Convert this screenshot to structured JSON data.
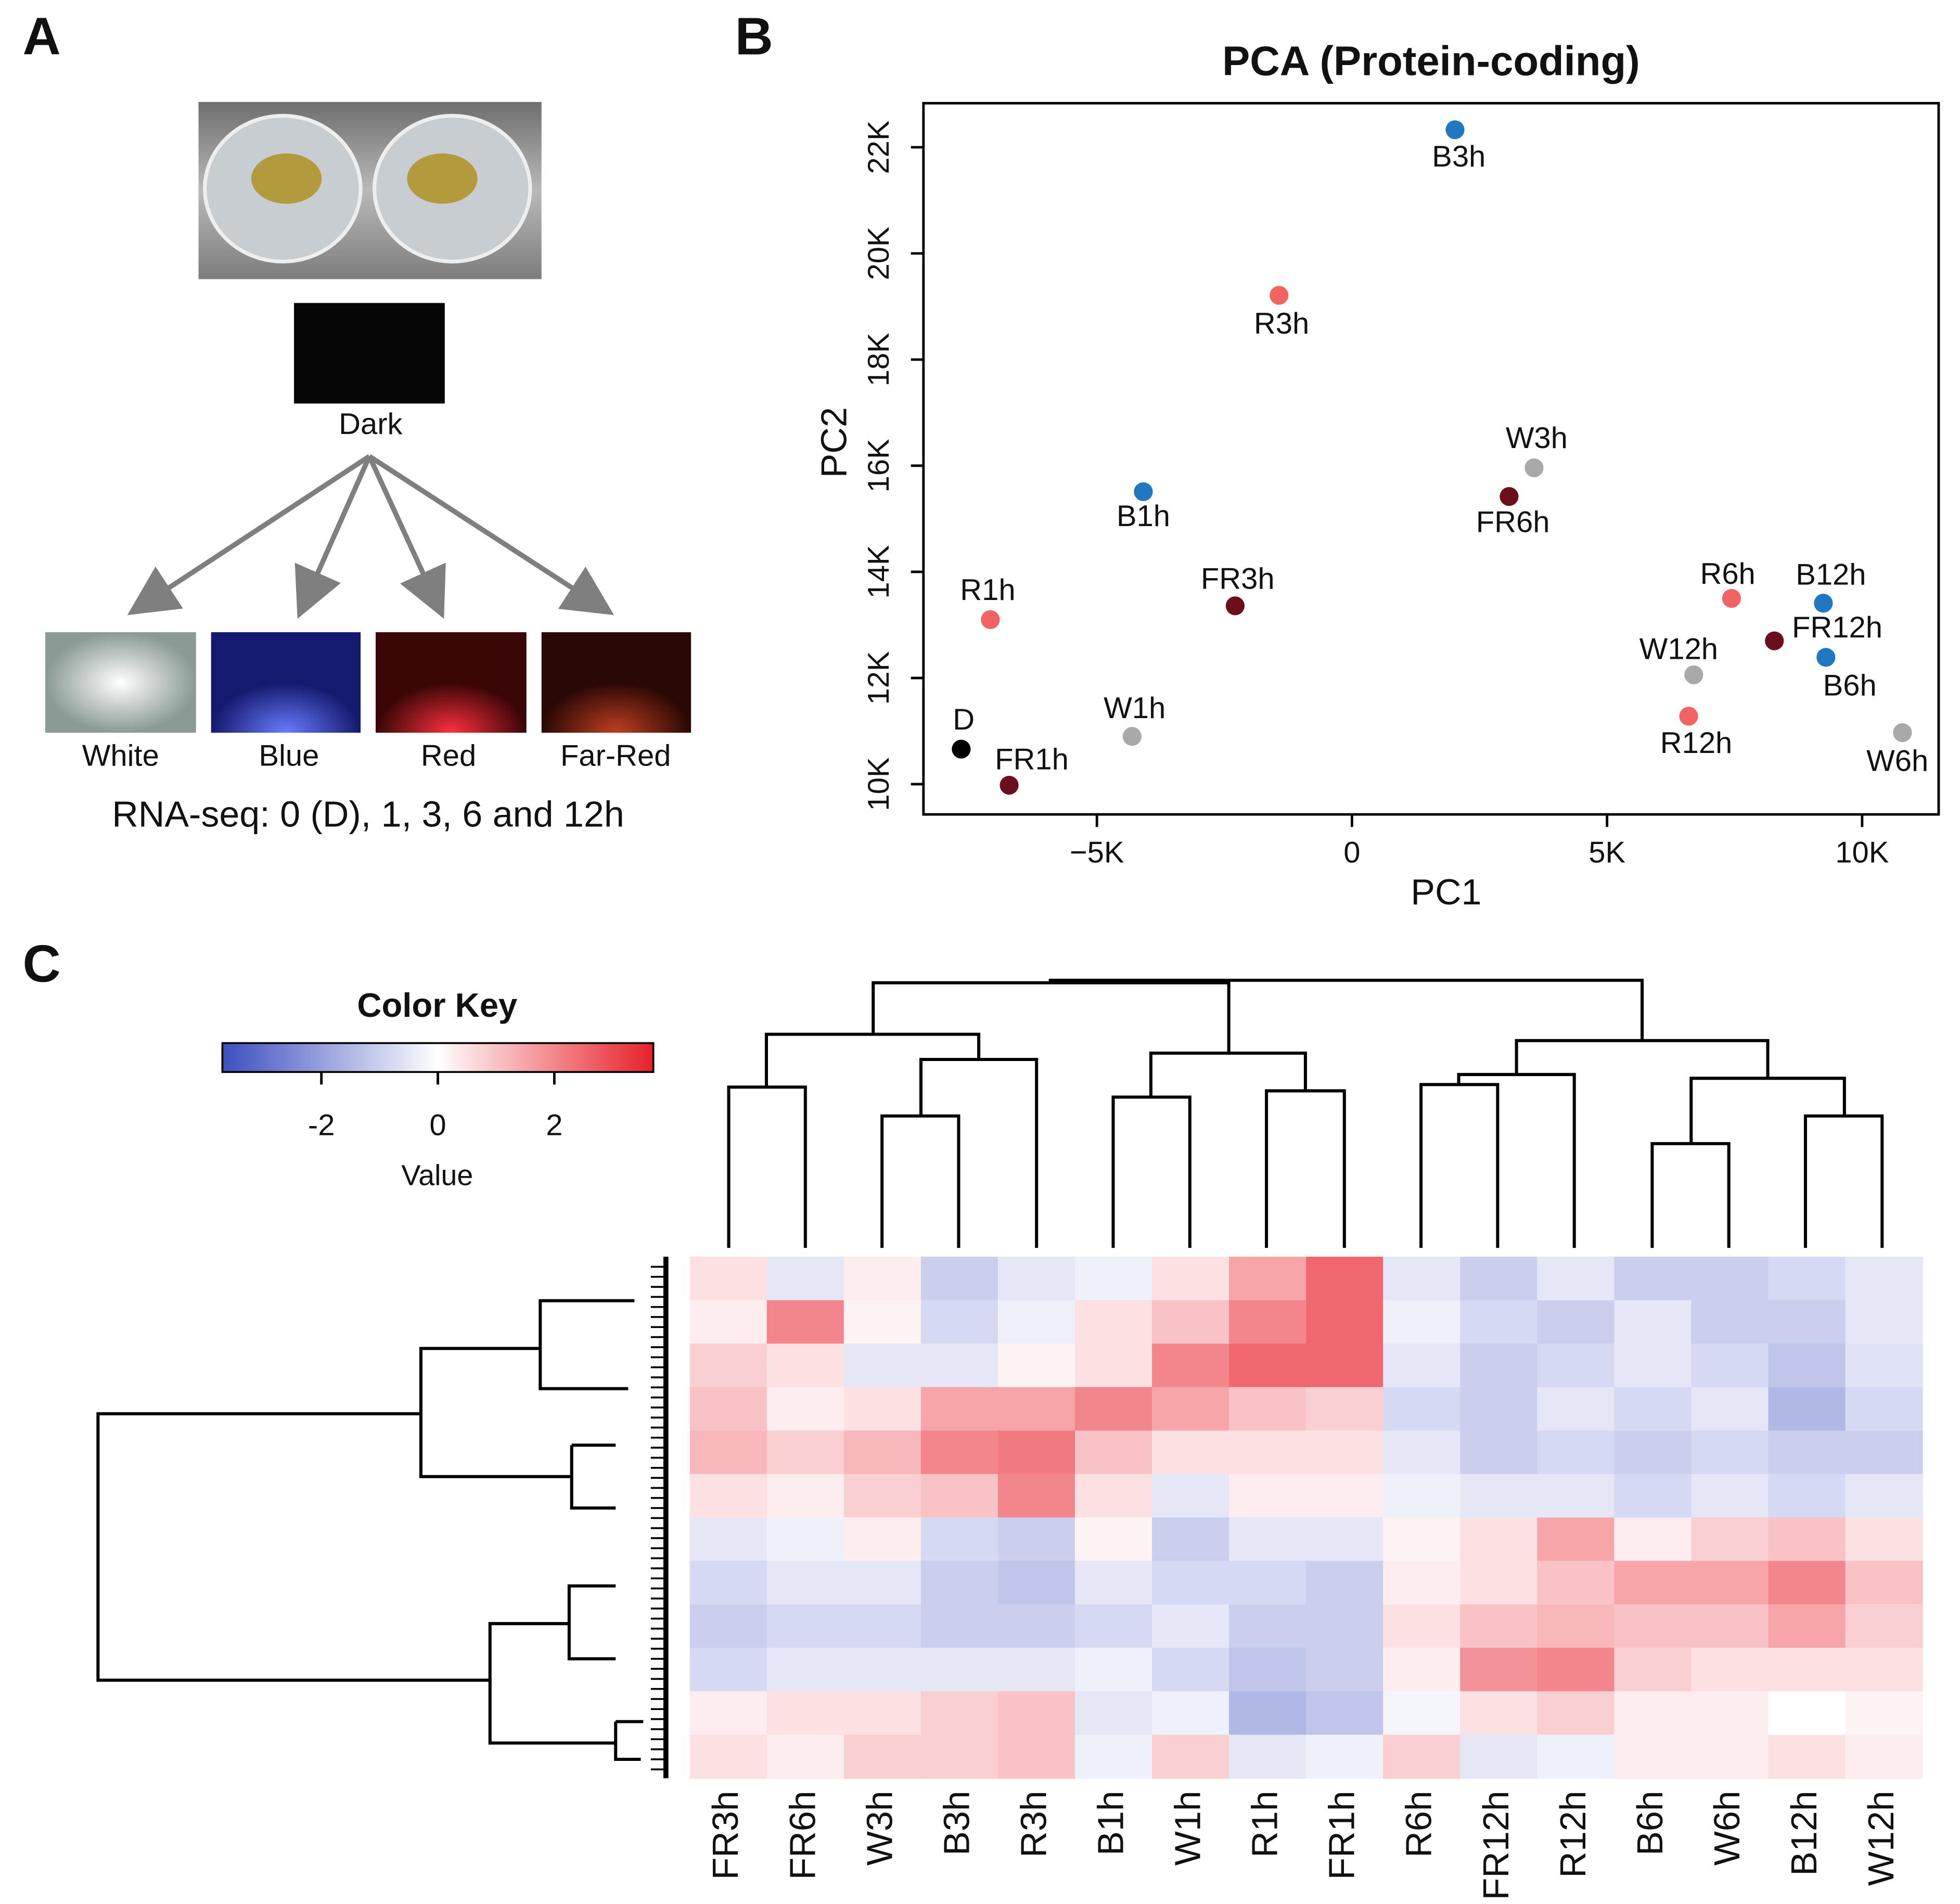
{
  "panel_labels": [
    "A",
    "B",
    "C"
  ],
  "diagram": {
    "start_label": "Dark",
    "conditions": [
      "White",
      "Blue",
      "Red",
      "Far-Red"
    ],
    "caption": "RNA-seq: 0 (D), 1, 3, 6 and 12h"
  },
  "chart_data": [
    {
      "type": "scatter",
      "title": "PCA (Protein-coding)",
      "x_label": "PC1",
      "y_label": "PC2",
      "labels": [
        "B3h",
        "R3h",
        "W3h",
        "FR6h",
        "B1h",
        "R1h",
        "FR3h",
        "R6h",
        "B12h",
        "FR12h",
        "B6h",
        "W12h",
        "R12h",
        "W6h",
        "W1h",
        "D",
        "FR1h"
      ],
      "x": [
        2020,
        -1430,
        3570,
        3080,
        -4090,
        -7090,
        -2290,
        7440,
        9240,
        8280,
        9290,
        6700,
        6600,
        10790,
        -4310,
        -7660,
        -6720
      ],
      "values": [
        22330,
        19210,
        15960,
        15420,
        15510,
        13100,
        13360,
        13500,
        13410,
        12700,
        12390,
        12060,
        11280,
        10970,
        10900,
        10660,
        9980
      ],
      "colors": [
        "#1f78c1",
        "#f06464",
        "#a9a9a9",
        "#6b0f1a",
        "#1f78c1",
        "#f06464",
        "#6b0f1a",
        "#f06464",
        "#1f78c1",
        "#6b0f1a",
        "#1f78c1",
        "#a9a9a9",
        "#f06464",
        "#a9a9a9",
        "#a9a9a9",
        "#000000",
        "#6b0f1a"
      ],
      "xlim": [
        -8400,
        11500
      ],
      "xticks": [
        {
          "value": -5000,
          "label": "−5K"
        },
        0,
        {
          "value": 5000,
          "label": "5K"
        },
        {
          "value": 10000,
          "label": "10K"
        }
      ],
      "ylim": [
        9430,
        22830
      ],
      "yticks": [
        {
          "value": 10000,
          "label": "10K"
        },
        {
          "value": 12000,
          "label": "12K"
        },
        {
          "value": 14000,
          "label": "14K"
        },
        {
          "value": 16000,
          "label": "16K"
        },
        {
          "value": 18000,
          "label": "18K"
        },
        {
          "value": 20000,
          "label": "20K"
        },
        {
          "value": 22000,
          "label": "22K"
        }
      ]
    },
    {
      "type": "heatmap",
      "title": "Color Key",
      "colorbar_label": "Value",
      "columns": [
        "FR3h",
        "FR6h",
        "W3h",
        "B3h",
        "R3h",
        "B1h",
        "W1h",
        "R1h",
        "FR1h",
        "R6h",
        "FR12h",
        "R12h",
        "B6h",
        "W6h",
        "B12h",
        "W12h"
      ],
      "values": [
        [
          0.5,
          -0.5,
          0.3,
          -1,
          -0.5,
          -0.3,
          0.5,
          1.5,
          2.5,
          -0.5,
          -1,
          -0.5,
          -1,
          -1,
          -0.8,
          -0.5
        ],
        [
          0.3,
          2,
          0.2,
          -0.8,
          -0.3,
          0.5,
          1,
          2,
          2.5,
          -0.3,
          -0.8,
          -1,
          -0.5,
          -1,
          -1,
          -0.5
        ],
        [
          0.8,
          0.5,
          -0.5,
          -0.5,
          0.2,
          0.5,
          2,
          2.5,
          2.5,
          -0.5,
          -1,
          -0.8,
          -0.5,
          -0.8,
          -1.2,
          -0.6
        ],
        [
          1,
          0.3,
          0.5,
          1.5,
          1.5,
          2,
          1.5,
          1,
          0.8,
          -0.8,
          -1,
          -0.5,
          -0.8,
          -0.5,
          -1.5,
          -0.8
        ],
        [
          1.2,
          0.8,
          1.2,
          2,
          2.2,
          1,
          0.5,
          0.5,
          0.5,
          -0.5,
          -1,
          -0.8,
          -1,
          -0.8,
          -1,
          -1
        ],
        [
          0.5,
          0.3,
          0.8,
          1,
          2,
          0.5,
          -0.5,
          0.3,
          0.3,
          -0.3,
          -0.5,
          -0.5,
          -0.8,
          -0.5,
          -0.8,
          -0.5
        ],
        [
          -0.5,
          -0.3,
          0.3,
          -0.8,
          -1,
          0.2,
          -1,
          -0.5,
          -0.5,
          0.2,
          0.5,
          1.5,
          0.3,
          0.8,
          1,
          0.5
        ],
        [
          -0.8,
          -0.5,
          -0.5,
          -1,
          -1.2,
          -0.5,
          -0.8,
          -0.8,
          -1,
          0.3,
          0.5,
          1,
          1.5,
          1.5,
          2,
          1
        ],
        [
          -1,
          -0.8,
          -0.8,
          -1,
          -1,
          -0.8,
          -0.5,
          -1,
          -1,
          0.5,
          1,
          1.2,
          1,
          1,
          1.5,
          0.8
        ],
        [
          -0.8,
          -0.5,
          -0.5,
          -0.5,
          -0.5,
          -0.3,
          -0.8,
          -1.2,
          -1,
          0.3,
          1.8,
          2,
          0.8,
          0.5,
          0.5,
          0.5
        ],
        [
          0.3,
          0.5,
          0.5,
          0.8,
          1,
          -0.5,
          -0.3,
          -1.5,
          -1.2,
          -0.2,
          0.5,
          0.8,
          0.3,
          0.3,
          0,
          0.2
        ],
        [
          0.5,
          0.3,
          0.8,
          0.8,
          1,
          -0.3,
          0.8,
          -0.5,
          -0.3,
          0.8,
          -0.5,
          -0.3,
          0.3,
          0.3,
          0.5,
          0.3
        ]
      ],
      "clim": [
        -3.7,
        3.7
      ],
      "cticks": [
        -2,
        0,
        2
      ],
      "colors": [
        "#3d4fbf",
        "#ffffff",
        "#e8202a"
      ]
    }
  ]
}
